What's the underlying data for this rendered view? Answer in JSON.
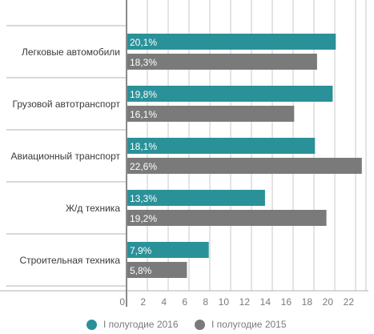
{
  "chart_data": {
    "type": "bar",
    "orientation": "horizontal",
    "categories": [
      "Легковые автомобили",
      "Грузовой автотранспорт",
      "Авиационный транспорт",
      "Ж/д техника",
      "Строительная техника"
    ],
    "series": [
      {
        "name": "I полугодие 2016",
        "values": [
          20.1,
          19.8,
          18.1,
          13.3,
          7.9
        ],
        "labels": [
          "20,1%",
          "19,8%",
          "18,1%",
          "13,3%",
          "7,9%"
        ],
        "color": "#2a9199"
      },
      {
        "name": "I полугодие 2015",
        "values": [
          18.3,
          16.1,
          22.6,
          19.2,
          5.8
        ],
        "labels": [
          "18,3%",
          "16,1%",
          "22,6%",
          "19,2%",
          "5,8%"
        ],
        "color": "#7a7a7a"
      }
    ],
    "xticks": [
      "0",
      "2",
      "4",
      "6",
      "8",
      "10",
      "12",
      "14",
      "16",
      "18",
      "20",
      "22"
    ],
    "xlim": [
      0,
      23
    ],
    "grid": true,
    "legend_position": "bottom"
  }
}
